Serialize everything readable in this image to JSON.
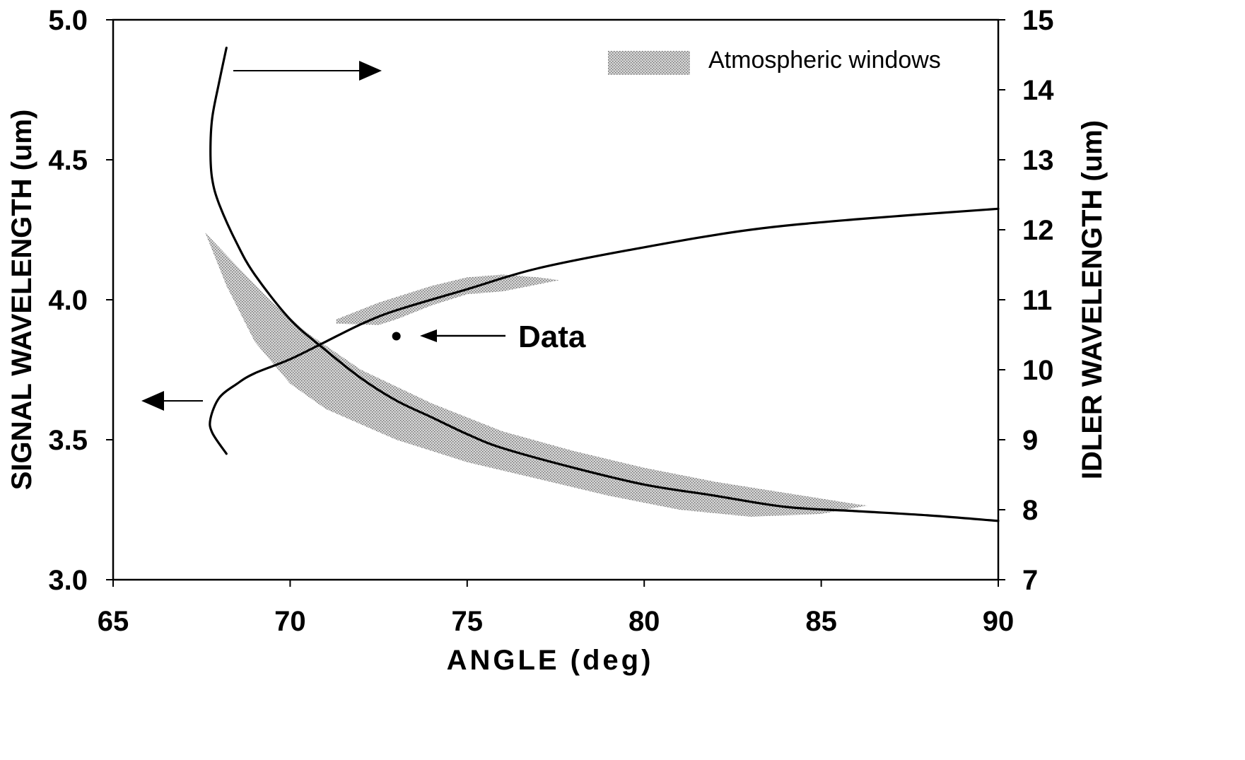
{
  "chart_data": {
    "type": "line",
    "xlabel": "ANGLE (deg)",
    "ylabel_left": "SIGNAL WAVELENGTH (um)",
    "ylabel_right": "IDLER WAVELENGTH (um)",
    "xlim": [
      65,
      90
    ],
    "ylim_left": [
      3.0,
      5.0
    ],
    "ylim_right": [
      7,
      15
    ],
    "x_ticks": [
      "65",
      "70",
      "75",
      "80",
      "85",
      "90"
    ],
    "y_ticks_left": [
      "3.0",
      "3.5",
      "4.0",
      "4.5",
      "5.0"
    ],
    "y_ticks_right": [
      "7",
      "8",
      "9",
      "10",
      "11",
      "12",
      "13",
      "14",
      "15"
    ],
    "grid": false,
    "legend": {
      "label": "Atmospheric windows",
      "placement": "top-right"
    },
    "annotations": [
      {
        "text": "Data",
        "x": 73.0,
        "y": 3.87
      }
    ],
    "series": [
      {
        "axis": "left",
        "x": [
          68.2,
          68.0,
          67.8,
          67.75,
          67.8,
          68.0,
          68.5,
          69.0,
          70.0,
          71.0,
          72.0,
          73.0,
          74.0,
          75.0,
          76.0,
          78.0,
          80.0,
          82.0,
          84.0,
          86.0,
          88.0,
          90.0
        ],
        "values": [
          4.9,
          4.78,
          4.65,
          4.53,
          4.43,
          4.34,
          4.2,
          4.09,
          3.93,
          3.82,
          3.72,
          3.64,
          3.58,
          3.52,
          3.47,
          3.4,
          3.34,
          3.3,
          3.26,
          3.245,
          3.23,
          3.21
        ]
      },
      {
        "axis": "right",
        "x": [
          68.2,
          67.8,
          67.75,
          68.0,
          68.5,
          69.0,
          70.0,
          71.0,
          72.0,
          73.0,
          75.0,
          77.0,
          80.0,
          83.0,
          86.0,
          90.0
        ],
        "values": [
          8.8,
          9.1,
          9.3,
          9.6,
          9.8,
          9.95,
          10.15,
          10.4,
          10.65,
          10.85,
          11.15,
          11.45,
          11.75,
          12.0,
          12.15,
          12.3
        ]
      }
    ],
    "shaded_bands": [
      {
        "axis": "left",
        "upper": [
          [
            67.6,
            4.24
          ],
          [
            68.5,
            4.12
          ],
          [
            69.5,
            3.99
          ],
          [
            70.5,
            3.88
          ],
          [
            72.0,
            3.75
          ],
          [
            74.0,
            3.63
          ],
          [
            76.0,
            3.53
          ],
          [
            78.0,
            3.46
          ],
          [
            80.0,
            3.4
          ],
          [
            82.0,
            3.35
          ],
          [
            84.0,
            3.31
          ],
          [
            86.0,
            3.27
          ],
          [
            86.3,
            3.265
          ]
        ],
        "lower": [
          [
            86.3,
            3.265
          ],
          [
            85.0,
            3.235
          ],
          [
            83.0,
            3.225
          ],
          [
            81.0,
            3.25
          ],
          [
            79.0,
            3.3
          ],
          [
            77.0,
            3.36
          ],
          [
            75.0,
            3.42
          ],
          [
            73.0,
            3.5
          ],
          [
            71.0,
            3.61
          ],
          [
            70.0,
            3.7
          ],
          [
            69.0,
            3.85
          ],
          [
            68.2,
            4.05
          ],
          [
            67.6,
            4.24
          ]
        ]
      },
      {
        "axis": "left",
        "upper": [
          [
            71.3,
            3.93
          ],
          [
            72.5,
            3.99
          ],
          [
            74.0,
            4.05
          ],
          [
            75.0,
            4.08
          ],
          [
            76.0,
            4.09
          ],
          [
            77.0,
            4.08
          ],
          [
            77.6,
            4.07
          ]
        ],
        "lower": [
          [
            77.6,
            4.07
          ],
          [
            76.0,
            4.03
          ],
          [
            75.0,
            4.02
          ],
          [
            74.0,
            3.98
          ],
          [
            73.0,
            3.93
          ],
          [
            72.5,
            3.91
          ],
          [
            71.3,
            3.915
          ]
        ]
      }
    ],
    "direction_arrows": [
      "right",
      "left"
    ]
  }
}
